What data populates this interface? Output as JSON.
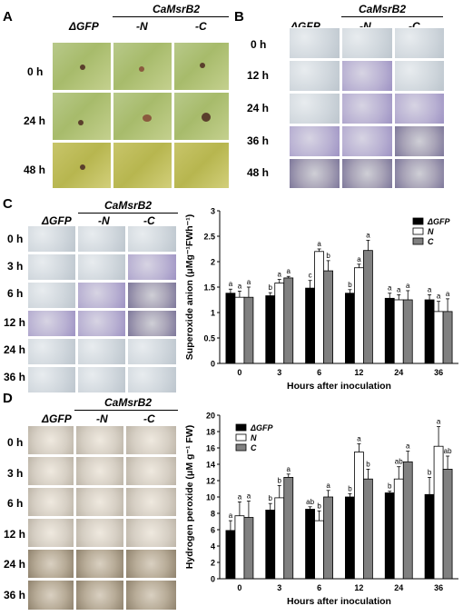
{
  "panels": {
    "A": {
      "label": "A",
      "header_gene": "CaMsrB2",
      "col_labels": [
        "ΔGFP",
        "-N",
        "-C"
      ],
      "row_labels": [
        "0 h",
        "24 h",
        "48 h"
      ]
    },
    "B": {
      "label": "B",
      "header_gene": "CaMsrB2",
      "col_labels": [
        "ΔGFP",
        "-N",
        "-C"
      ],
      "row_labels": [
        "0 h",
        "12 h",
        "24 h",
        "36 h",
        "48 h"
      ]
    },
    "C": {
      "label": "C",
      "header_gene": "CaMsrB2",
      "col_labels": [
        "ΔGFP",
        "-N",
        "-C"
      ],
      "row_labels": [
        "0 h",
        "3 h",
        "6 h",
        "12 h",
        "24 h",
        "36 h"
      ]
    },
    "D": {
      "label": "D",
      "header_gene": "CaMsrB2",
      "col_labels": [
        "ΔGFP",
        "-N",
        "-C"
      ],
      "row_labels": [
        "0 h",
        "3 h",
        "6 h",
        "12 h",
        "24 h",
        "36 h"
      ]
    }
  },
  "chart_data": [
    {
      "type": "bar",
      "xlabel": "Hours after inoculation",
      "ylabel": "Superoxide anion (μMg⁻¹FWh⁻¹)",
      "ylim": [
        0,
        3
      ],
      "yticks": [
        "0",
        "0.5",
        "1",
        "1.5",
        "2",
        "2.5",
        "3"
      ],
      "categories": [
        "0",
        "3",
        "6",
        "12",
        "24",
        "36"
      ],
      "legend_position": "top-right",
      "series": [
        {
          "name": "ΔGFP",
          "color": "#000000",
          "values": [
            1.38,
            1.33,
            1.48,
            1.38,
            1.28,
            1.25
          ],
          "errors": [
            0.08,
            0.06,
            0.15,
            0.07,
            0.1,
            0.1
          ],
          "letters": [
            "a",
            "b",
            "c",
            "b",
            "a",
            "a"
          ]
        },
        {
          "name": "N",
          "color": "#ffffff",
          "values": [
            1.3,
            1.58,
            2.2,
            1.88,
            1.25,
            1.02
          ],
          "errors": [
            0.12,
            0.07,
            0.05,
            0.07,
            0.1,
            0.2
          ],
          "letters": [
            "a",
            "a",
            "a",
            "a",
            "a",
            "a"
          ]
        },
        {
          "name": "C",
          "color": "#808080",
          "values": [
            1.3,
            1.68,
            1.82,
            2.22,
            1.25,
            1.02
          ],
          "errors": [
            0.2,
            0.03,
            0.2,
            0.2,
            0.18,
            0.25
          ],
          "letters": [
            "a",
            "a",
            "b",
            "a",
            "a",
            "a"
          ]
        }
      ]
    },
    {
      "type": "bar",
      "xlabel": "Hours after inoculation",
      "ylabel": "Hydrogen peroxide (μM g⁻¹ FW)",
      "ylim": [
        0,
        20
      ],
      "yticks": [
        "0",
        "2",
        "4",
        "6",
        "8",
        "10",
        "12",
        "14",
        "16",
        "18",
        "20"
      ],
      "categories": [
        "0",
        "3",
        "6",
        "12",
        "24",
        "36"
      ],
      "legend_position": "top-left",
      "series": [
        {
          "name": "ΔGFP",
          "color": "#000000",
          "values": [
            5.9,
            8.4,
            8.5,
            10.0,
            10.5,
            10.3
          ],
          "errors": [
            1.2,
            0.8,
            0.3,
            0.4,
            0.2,
            2.1
          ],
          "letters": [
            "a",
            "b",
            "ab",
            "b",
            "b",
            "b"
          ]
        },
        {
          "name": "N",
          "color": "#ffffff",
          "values": [
            7.7,
            9.9,
            7.1,
            15.5,
            12.2,
            16.2
          ],
          "errors": [
            1.7,
            1.5,
            1.2,
            1.0,
            1.5,
            2.4
          ],
          "letters": [
            "a",
            "b",
            "b",
            "a",
            "ab",
            "a"
          ]
        },
        {
          "name": "C",
          "color": "#808080",
          "values": [
            7.5,
            12.4,
            10.0,
            12.2,
            14.3,
            13.4
          ],
          "errors": [
            2.0,
            0.4,
            0.8,
            1.2,
            1.3,
            1.6
          ],
          "letters": [
            "a",
            "a",
            "a",
            "b",
            "a",
            "ab"
          ]
        }
      ]
    }
  ]
}
